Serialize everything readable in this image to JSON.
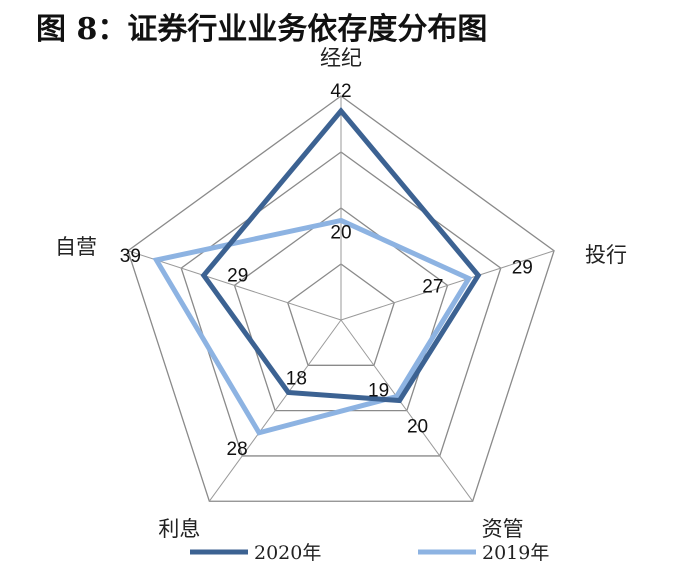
{
  "title": "图 8：证券行业业务依存度分布图",
  "chart_data": {
    "type": "radar",
    "categories": [
      "经纪",
      "投行",
      "资管",
      "利息",
      "自营"
    ],
    "series": [
      {
        "name": "2020年",
        "values": [
          42,
          29,
          20,
          18,
          29
        ],
        "color": "#3c6292"
      },
      {
        "name": "2019年",
        "values": [
          20,
          27,
          19,
          28,
          39
        ],
        "color": "#8db3e2"
      }
    ],
    "rmax": 45,
    "grid_levels": 4,
    "legend_position": "bottom"
  }
}
